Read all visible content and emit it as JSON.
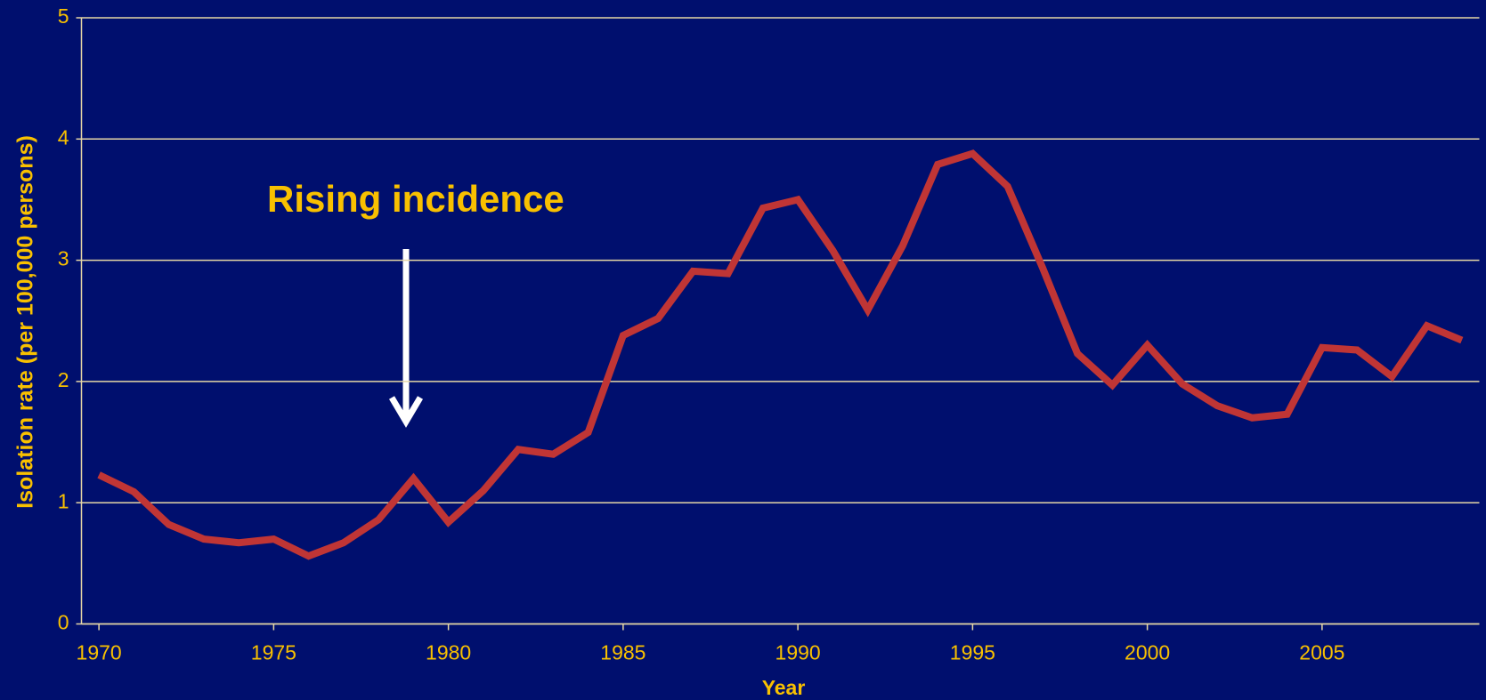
{
  "chart_data": {
    "type": "line",
    "annotation": "Rising incidence",
    "xlabel": "Year",
    "ylabel": "Isolation rate (per 100,000 persons)",
    "x": [
      1970,
      1971,
      1972,
      1973,
      1974,
      1975,
      1976,
      1977,
      1978,
      1979,
      1980,
      1981,
      1982,
      1983,
      1984,
      1985,
      1986,
      1987,
      1988,
      1989,
      1990,
      1991,
      1992,
      1993,
      1994,
      1995,
      1996,
      1997,
      1998,
      1999,
      2000,
      2001,
      2002,
      2003,
      2004,
      2005,
      2006,
      2007,
      2008,
      2009
    ],
    "series": [
      {
        "color": "#c03535",
        "values": [
          1.23,
          1.09,
          0.82,
          0.7,
          0.67,
          0.7,
          0.56,
          0.67,
          0.86,
          1.2,
          0.84,
          1.1,
          1.44,
          1.4,
          1.58,
          2.38,
          2.52,
          2.91,
          2.89,
          3.43,
          3.5,
          3.08,
          2.59,
          3.12,
          3.79,
          3.88,
          3.61,
          2.94,
          2.23,
          1.97,
          2.3,
          1.98,
          1.8,
          1.7,
          1.73,
          2.28,
          2.26,
          2.04,
          2.46,
          2.34
        ]
      }
    ],
    "xlim": [
      1969.5,
      2009.5
    ],
    "xticks": [
      1970,
      1975,
      1980,
      1985,
      1990,
      1995,
      2000,
      2005
    ],
    "ylim": [
      0,
      5
    ],
    "yticks": [
      0,
      1,
      2,
      3,
      4,
      5
    ],
    "grid": true
  }
}
